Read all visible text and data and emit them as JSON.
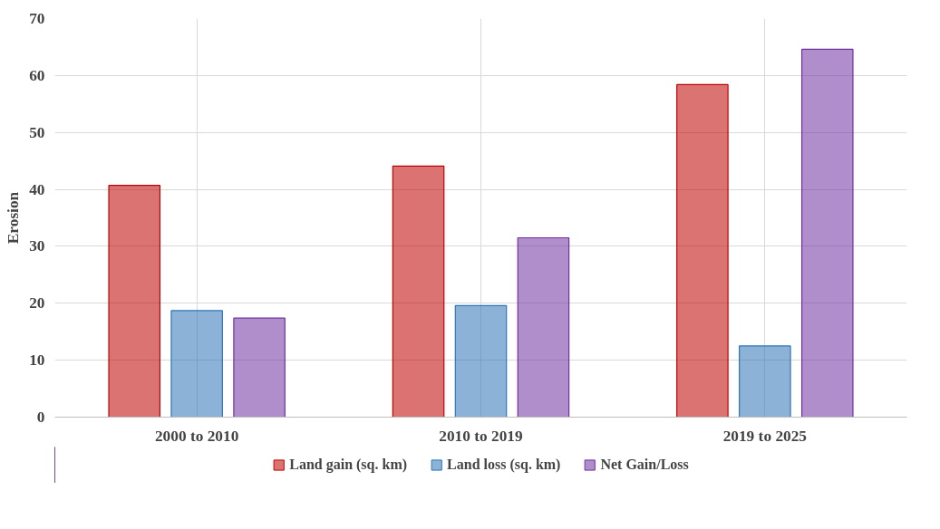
{
  "chart_data": {
    "type": "bar",
    "ylabel": "Erosion",
    "categories": [
      "2000 to 2010",
      "2010 to 2019",
      "2019 to 2025"
    ],
    "series": [
      {
        "name": "Land gain (sq. km)",
        "color": "#c00000",
        "values": [
          40.7,
          44.1,
          58.4
        ]
      },
      {
        "name": "Land loss (sq. km)",
        "color": "#2e75b6",
        "values": [
          18.7,
          19.6,
          12.5
        ]
      },
      {
        "name": "Net Gain/Loss",
        "color": "#7030a0",
        "values": [
          17.4,
          31.5,
          64.6
        ]
      }
    ],
    "ylim": [
      0,
      70
    ],
    "yticks": [
      0,
      10,
      20,
      30,
      40,
      50,
      60,
      70
    ],
    "grid": true,
    "legend": "bottom"
  }
}
